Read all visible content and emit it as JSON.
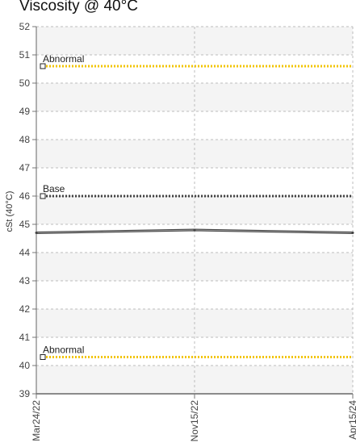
{
  "chart_data": {
    "type": "line",
    "title": "Viscosity @ 40°C",
    "xlabel": "",
    "ylabel": "cSt (40°C)",
    "ylim": [
      39,
      52
    ],
    "yticks": [
      39,
      40,
      41,
      42,
      43,
      44,
      45,
      46,
      47,
      48,
      49,
      50,
      51,
      52
    ],
    "x_categories": [
      "Mar24/22",
      "Nov15/22",
      "Apr15/24"
    ],
    "grid": true,
    "series": [
      {
        "name": "",
        "values": [
          44.7,
          44.8,
          44.7
        ],
        "color": "#444444"
      }
    ],
    "reference_lines": [
      {
        "label": "Abnormal",
        "value": 50.6,
        "color": "#F2C400",
        "style": "dotted"
      },
      {
        "label": "Base",
        "value": 46.0,
        "color": "#444444",
        "style": "dotted"
      },
      {
        "label": "Abnormal",
        "value": 40.3,
        "color": "#F2C400",
        "style": "dotted"
      }
    ]
  }
}
